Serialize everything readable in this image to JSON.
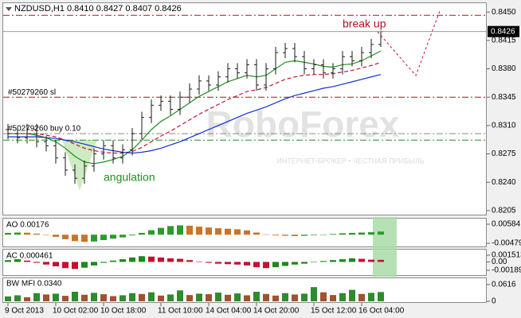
{
  "chart_data": [
    {
      "type": "ohlc",
      "title": "NZDUSD,H1  0.8410 0.8427 0.8407 0.8426",
      "color": "#1a1a1a",
      "categories": [
        "9 Oct 2013",
        null,
        null,
        null,
        null,
        "10 Oct 02:00",
        null,
        null,
        null,
        null,
        "10 Oct 18:00",
        null,
        null,
        null,
        null,
        null,
        "11 Oct 10:00",
        null,
        null,
        null,
        null,
        "14 Oct 04:00",
        null,
        null,
        null,
        null,
        "14 Oct 20:00",
        null,
        null,
        null,
        null,
        null,
        "15 Oct 12:00",
        null,
        null,
        null,
        null,
        "16 Oct 04:00",
        null,
        null
      ],
      "open": [
        0.8305,
        0.83,
        0.8295,
        0.8305,
        0.829,
        0.8285,
        0.827,
        0.8255,
        0.8245,
        0.826,
        0.8275,
        0.8285,
        0.827,
        0.828,
        0.83,
        0.832,
        0.8335,
        0.834,
        0.833,
        0.8345,
        0.8355,
        0.8365,
        0.836,
        0.837,
        0.838,
        0.8375,
        0.8385,
        0.836,
        0.838,
        0.84,
        0.8405,
        0.8395,
        0.838,
        0.8385,
        0.8375,
        0.838,
        0.8395,
        0.839,
        0.84,
        0.841
      ],
      "high": [
        0.8312,
        0.8307,
        0.8312,
        0.8312,
        0.8297,
        0.8292,
        0.8277,
        0.8262,
        0.8267,
        0.8282,
        0.8292,
        0.8292,
        0.8287,
        0.8307,
        0.8327,
        0.8342,
        0.8347,
        0.8347,
        0.8352,
        0.8362,
        0.8372,
        0.8372,
        0.8377,
        0.8387,
        0.8387,
        0.8392,
        0.8392,
        0.8387,
        0.8407,
        0.8412,
        0.8412,
        0.8402,
        0.8392,
        0.8392,
        0.8387,
        0.8402,
        0.8402,
        0.8407,
        0.8417,
        0.8427
      ],
      "low": [
        0.8293,
        0.8288,
        0.8288,
        0.8283,
        0.8278,
        0.8263,
        0.8248,
        0.8238,
        0.8238,
        0.8253,
        0.8268,
        0.8263,
        0.8263,
        0.8273,
        0.8293,
        0.8313,
        0.8328,
        0.8323,
        0.8323,
        0.8338,
        0.8348,
        0.8353,
        0.8353,
        0.8363,
        0.8368,
        0.8368,
        0.8353,
        0.8353,
        0.8373,
        0.8393,
        0.8388,
        0.8373,
        0.8373,
        0.8368,
        0.8368,
        0.8373,
        0.8383,
        0.8383,
        0.8393,
        0.8407
      ],
      "close": [
        0.83,
        0.8295,
        0.8305,
        0.829,
        0.8285,
        0.827,
        0.8255,
        0.8245,
        0.826,
        0.8275,
        0.8285,
        0.827,
        0.828,
        0.83,
        0.832,
        0.8335,
        0.834,
        0.833,
        0.8345,
        0.8355,
        0.8365,
        0.836,
        0.837,
        0.838,
        0.8375,
        0.8385,
        0.836,
        0.838,
        0.84,
        0.8405,
        0.8395,
        0.838,
        0.8385,
        0.8375,
        0.838,
        0.8395,
        0.839,
        0.84,
        0.841,
        0.8426
      ],
      "lines": [
        {
          "color": "#1f8f1f",
          "style": "solid",
          "values": [
            0.83,
            0.83,
            0.83,
            0.8298,
            0.8295,
            0.829,
            0.8282,
            0.8272,
            0.8265,
            0.8263,
            0.8265,
            0.8268,
            0.8272,
            0.828,
            0.8292,
            0.8305,
            0.8315,
            0.8322,
            0.833,
            0.8338,
            0.8346,
            0.8352,
            0.8358,
            0.8364,
            0.8368,
            0.8372,
            0.837,
            0.8372,
            0.838,
            0.8388,
            0.839,
            0.8388,
            0.8386,
            0.8383,
            0.8382,
            0.8385,
            0.8386,
            0.839,
            0.8396,
            0.8402
          ]
        },
        {
          "color": "#c0142c",
          "style": "dashed",
          "values": [
            0.83,
            0.83,
            0.83,
            0.83,
            0.8298,
            0.8296,
            0.8292,
            0.8287,
            0.8282,
            0.8279,
            0.8277,
            0.8276,
            0.8276,
            0.8278,
            0.8283,
            0.829,
            0.8297,
            0.8303,
            0.831,
            0.8317,
            0.8324,
            0.833,
            0.8336,
            0.8342,
            0.8347,
            0.8352,
            0.8354,
            0.8357,
            0.8362,
            0.8367,
            0.837,
            0.8372,
            0.8373,
            0.8373,
            0.8374,
            0.8376,
            0.8378,
            0.8381,
            0.8384,
            0.8388
          ]
        },
        {
          "color": "#1030d0",
          "style": "solid",
          "values": [
            0.8296,
            0.8296,
            0.8296,
            0.8296,
            0.8295,
            0.8294,
            0.8292,
            0.829,
            0.8287,
            0.8284,
            0.8281,
            0.8279,
            0.8277,
            0.8276,
            0.8277,
            0.8279,
            0.8282,
            0.8286,
            0.829,
            0.8295,
            0.83,
            0.8305,
            0.831,
            0.8315,
            0.832,
            0.8325,
            0.8329,
            0.8333,
            0.8338,
            0.8343,
            0.8347,
            0.835,
            0.8353,
            0.8356,
            0.8358,
            0.8361,
            0.8364,
            0.8367,
            0.837,
            0.8373
          ]
        }
      ],
      "levels": [
        {
          "value": 0.8446,
          "color": "#b01020"
        },
        {
          "name": "#50279260 sl",
          "value": 0.8345,
          "color": "#b01020"
        },
        {
          "name": "#50279260 buy 0.10",
          "value": 0.83,
          "color": "#888888"
        },
        {
          "value": 0.8292,
          "color": "#1f8f1f"
        }
      ],
      "current_price": {
        "value": 0.8426,
        "label": "0.8426"
      },
      "ylim": [
        0.82,
        0.8461
      ],
      "yticks": [
        {
          "value": 0.845,
          "label": "0.8450"
        },
        0.8415,
        {
          "value": 0.838,
          "label": "0.8380"
        },
        0.8345,
        {
          "value": 0.831,
          "label": "0.8310"
        },
        0.8275,
        {
          "value": 0.824,
          "label": "0.8240"
        },
        0.8205
      ],
      "annotations": [
        "break up",
        "angulation"
      ],
      "watermark": "RoboForex",
      "watermark_subtitle": "ИНТЕРНЕТ-БРОКЕР • ЧЕСТНАЯ ПРИБЫЛЬ"
    },
    {
      "type": "histogram",
      "title": "AO 0.00176",
      "up_color": "#2e9a2e",
      "down_color": "#c9742a",
      "values": [
        0.001,
        0.0012,
        0.0011,
        0.0006,
        0.0,
        -0.0012,
        -0.0025,
        -0.0036,
        -0.004,
        -0.0038,
        -0.003,
        -0.0022,
        -0.0015,
        -0.0004,
        0.001,
        0.0025,
        0.0038,
        0.0048,
        0.0052,
        0.005,
        0.0045,
        0.004,
        0.0036,
        0.0033,
        0.003,
        0.0024,
        0.0012,
        0.0002,
        -0.0004,
        -0.0006,
        -0.0008,
        -0.0006,
        -0.0003,
        0.0,
        0.0004,
        0.0008,
        0.001,
        0.0012,
        0.0014,
        0.00176
      ],
      "ylim": [
        -0.0061,
        0.0085
      ],
      "yticks": [
        0.00584,
        -0.00479
      ]
    },
    {
      "type": "histogram",
      "title": "AC 0.000461",
      "up_color": "#1a8a1a",
      "down_color": "#c8102e",
      "values": [
        0.0004,
        0.0006,
        0.0003,
        -0.0002,
        -0.0006,
        -0.001,
        -0.0014,
        -0.0016,
        -0.0013,
        -0.0008,
        -0.0002,
        0.0003,
        0.0006,
        0.001,
        0.0013,
        0.0012,
        0.001,
        0.0008,
        0.0007,
        0.0004,
        0.0001,
        -0.0002,
        -0.0004,
        -0.0005,
        -0.0006,
        -0.0008,
        -0.0012,
        -0.0014,
        -0.0012,
        -0.0009,
        -0.0006,
        -0.0004,
        -0.0001,
        0.0002,
        0.0004,
        0.0006,
        0.0008,
        0.0007,
        0.0005,
        0.000461
      ],
      "ylim": [
        -0.00279,
        0.00259
      ],
      "yticks": [
        0.001513,
        {
          "value": 0,
          "label": "0.00"
        },
        -0.00189
      ]
    },
    {
      "type": "histogram",
      "title": "BW MFI 0.0340",
      "up_color": "#2e8b2e",
      "down_color": "#a0522d",
      "values": [
        0.018,
        0.022,
        0.015,
        0.03,
        0.025,
        0.028,
        0.02,
        0.035,
        0.024,
        0.031,
        0.026,
        0.019,
        0.022,
        0.03,
        0.027,
        0.033,
        0.021,
        0.025,
        0.04,
        0.023,
        0.028,
        0.026,
        0.032,
        0.024,
        0.029,
        0.022,
        0.035,
        0.027,
        0.021,
        0.03,
        0.025,
        0.028,
        0.052,
        0.033,
        0.023,
        0.03,
        0.042,
        0.027,
        0.031,
        0.034
      ],
      "ylim": [
        0,
        0.0846
      ],
      "yticks": [
        0.0616,
        0
      ]
    }
  ]
}
